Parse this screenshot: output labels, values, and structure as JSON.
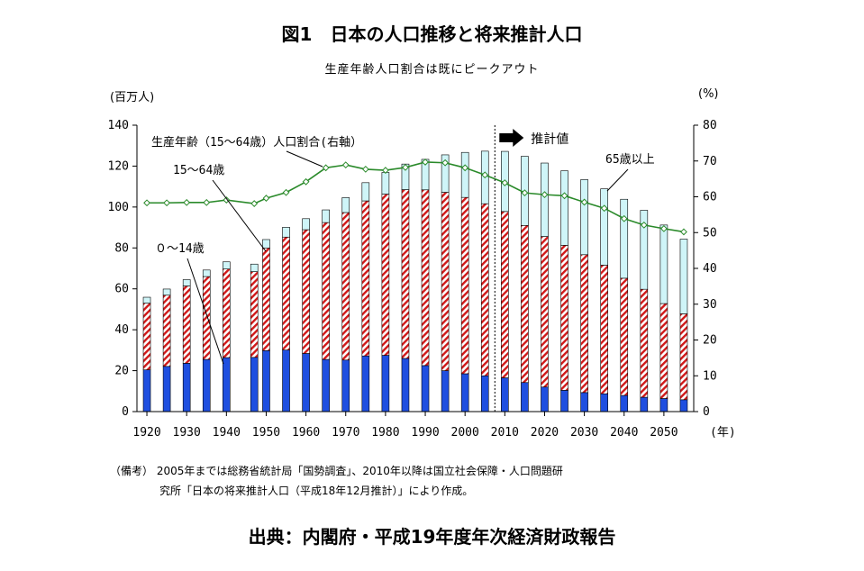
{
  "title": "図1　日本の人口推移と将来推計人口",
  "subtitle": "生産年齢人口割合は既にピークアウト",
  "note_line1": "（備考） 2005年までは総務省統計局「国勢調査」、2010年以降は国立社会保障・人口問題研",
  "note_line2": "究所「日本の将来推計人口（平成18年12月推計）」により作成。",
  "source": "出典：内閣府・平成19年度年次経済財政報告",
  "colors": {
    "young": "#1f4fe0",
    "working_stripe": "#d01818",
    "elderly": "#cff5f8",
    "ratio_line": "#2a8a2a",
    "bar_outline": "#000000"
  },
  "chart_data": {
    "type": "bar",
    "stacked": true,
    "unit_left": "(百万人)",
    "unit_right": "(%)",
    "x_unit": "(年)",
    "ylim": [
      0,
      140
    ],
    "y_ticks": [
      0,
      20,
      40,
      60,
      80,
      100,
      120,
      140
    ],
    "y2lim": [
      0,
      80
    ],
    "y2_ticks": [
      0,
      10,
      20,
      30,
      40,
      50,
      60,
      70,
      80
    ],
    "x_ticks": [
      1920,
      1930,
      1940,
      1950,
      1960,
      1970,
      1980,
      1990,
      2000,
      2010,
      2020,
      2030,
      2040,
      2050
    ],
    "grid": false,
    "years": [
      1920,
      1925,
      1930,
      1935,
      1940,
      1947,
      1950,
      1955,
      1960,
      1965,
      1970,
      1975,
      1980,
      1985,
      1990,
      1995,
      2000,
      2005,
      2010,
      2015,
      2020,
      2025,
      2030,
      2035,
      2040,
      2045,
      2050,
      2055
    ],
    "series": [
      {
        "name": "０～14歳",
        "axis": "left",
        "values": [
          20.4,
          22.1,
          23.6,
          25.5,
          26.4,
          26.5,
          29.8,
          30.1,
          28.4,
          25.5,
          25.2,
          27.2,
          27.5,
          26.0,
          22.5,
          20.0,
          18.5,
          17.5,
          16.5,
          14.2,
          12.0,
          10.4,
          9.3,
          8.7,
          7.9,
          7.0,
          6.4,
          5.8
        ]
      },
      {
        "name": "15～64歳",
        "axis": "left",
        "values": [
          32.6,
          34.8,
          37.8,
          40.5,
          43.3,
          41.9,
          50.2,
          55.2,
          60.5,
          66.9,
          72.1,
          75.8,
          78.8,
          82.5,
          85.9,
          87.2,
          86.2,
          84.1,
          81.3,
          76.8,
          73.6,
          70.9,
          67.4,
          62.9,
          57.3,
          52.8,
          46.4,
          42.0
        ]
      },
      {
        "name": "65歳以上",
        "axis": "left",
        "values": [
          2.9,
          3.0,
          3.1,
          3.2,
          3.5,
          3.7,
          4.1,
          4.8,
          5.4,
          6.2,
          7.3,
          8.9,
          10.6,
          12.5,
          14.9,
          18.3,
          22.0,
          25.7,
          29.4,
          33.8,
          35.9,
          36.4,
          36.7,
          37.3,
          38.6,
          38.6,
          38.4,
          36.5
        ]
      },
      {
        "name": "生産年齢（15～64歳）人口割合(右軸）",
        "axis": "right",
        "values": [
          58.3,
          58.3,
          58.4,
          58.4,
          59.1,
          58.1,
          59.6,
          61.2,
          64.2,
          68.1,
          68.9,
          67.7,
          67.4,
          68.2,
          69.7,
          69.5,
          68.1,
          66.1,
          63.9,
          61.1,
          60.6,
          60.3,
          58.5,
          56.8,
          53.9,
          52.1,
          51.1,
          50.2
        ]
      }
    ],
    "annotations": {
      "ratio_label": "生産年齢（15～64歳）人口割合(右軸）",
      "working_label": "15～64歳",
      "young_label": "０～14歳",
      "elderly_label": "65歳以上",
      "projection_label": "推計値",
      "projection_start_year": 2007.5
    }
  }
}
